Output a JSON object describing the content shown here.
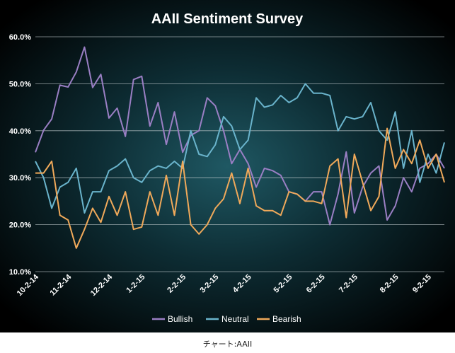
{
  "caption": "チャート:AAII",
  "chart_data": {
    "type": "line",
    "title": "AAII Sentiment Survey",
    "xlabel": "",
    "ylabel": "",
    "ylim": [
      10,
      60
    ],
    "y_ticks": [
      "10.0%",
      "20.0%",
      "30.0%",
      "40.0%",
      "50.0%",
      "60.0%"
    ],
    "x_ticks": [
      {
        "label": "10-2-14",
        "i": 0
      },
      {
        "label": "11-2-14",
        "i": 4
      },
      {
        "label": "12-2-14",
        "i": 9
      },
      {
        "label": "1-2-15",
        "i": 13
      },
      {
        "label": "2-2-15",
        "i": 18
      },
      {
        "label": "3-2-15",
        "i": 22
      },
      {
        "label": "4-2-15",
        "i": 26
      },
      {
        "label": "5-2-15",
        "i": 31
      },
      {
        "label": "6-2-15",
        "i": 35
      },
      {
        "label": "7-2-15",
        "i": 39
      },
      {
        "label": "8-2-15",
        "i": 44
      },
      {
        "label": "9-2-15",
        "i": 48
      }
    ],
    "grid": true,
    "legend_position": "bottom",
    "colors": {
      "Bullish": "#9a7fc4",
      "Neutral": "#6ab4cc",
      "Bearish": "#f0a95a"
    },
    "series": [
      {
        "name": "Bullish",
        "values": [
          35.4,
          40.1,
          42.5,
          49.7,
          49.3,
          52.5,
          57.8,
          49.2,
          52.0,
          42.7,
          44.8,
          38.8,
          50.9,
          51.6,
          41.0,
          46.0,
          37.1,
          44.0,
          35.4,
          39.0,
          40.0,
          47.0,
          45.3,
          40.0,
          33.0,
          36.0,
          33.0,
          28.0,
          32.0,
          31.5,
          30.5,
          27.0,
          26.5,
          25.0,
          27.0,
          27.0,
          20.0,
          26.5,
          35.5,
          22.5,
          28.0,
          31.0,
          32.5,
          21.0,
          24.0,
          30.0,
          27.0,
          32.0,
          33.0,
          35.0,
          32.0
        ]
      },
      {
        "name": "Neutral",
        "values": [
          33.5,
          30.0,
          23.5,
          28.0,
          29.0,
          32.0,
          22.5,
          27.0,
          27.0,
          31.5,
          32.5,
          34.0,
          30.0,
          29.0,
          31.5,
          32.5,
          32.0,
          33.5,
          32.0,
          40.0,
          35.0,
          34.5,
          37.0,
          43.0,
          41.0,
          36.0,
          38.0,
          47.0,
          45.0,
          45.5,
          47.5,
          46.0,
          47.0,
          50.0,
          48.0,
          48.0,
          47.5,
          40.0,
          43.0,
          42.5,
          43.0,
          46.0,
          40.0,
          38.0,
          44.0,
          32.0,
          40.0,
          29.0,
          35.0,
          31.0,
          37.5
        ]
      },
      {
        "name": "Bearish",
        "values": [
          31.0,
          31.0,
          33.5,
          22.0,
          21.0,
          15.0,
          19.0,
          23.5,
          20.5,
          26.0,
          22.0,
          27.0,
          19.0,
          19.5,
          27.0,
          22.0,
          30.5,
          22.0,
          33.5,
          20.0,
          18.0,
          20.0,
          23.5,
          25.5,
          31.0,
          24.5,
          32.0,
          24.0,
          23.0,
          23.0,
          22.0,
          27.0,
          26.5,
          25.0,
          25.0,
          24.5,
          32.5,
          34.0,
          21.5,
          35.0,
          29.0,
          23.0,
          26.0,
          40.5,
          32.0,
          36.0,
          33.0,
          38.0,
          32.0,
          35.0,
          29.0
        ]
      }
    ]
  }
}
